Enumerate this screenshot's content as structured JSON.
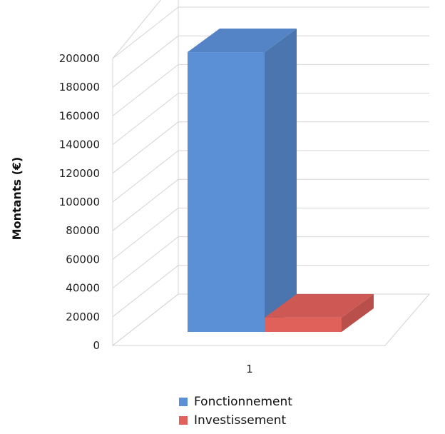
{
  "chart_data": {
    "type": "bar",
    "three_d": true,
    "categories": [
      "1"
    ],
    "series": [
      {
        "name": "Fonctionnement",
        "values": [
          195000
        ],
        "color": "#5b8fd6"
      },
      {
        "name": "Investissement",
        "values": [
          10000
        ],
        "color": "#e0605a"
      }
    ],
    "ylabel": "Montants (€)",
    "xlabel": "",
    "title": "",
    "ylim": [
      0,
      200000
    ],
    "yticks": [
      "0",
      "20000",
      "40000",
      "60000",
      "80000",
      "100000",
      "120000",
      "140000",
      "160000",
      "180000",
      "200000"
    ],
    "grid": true,
    "legend_position": "bottom"
  }
}
